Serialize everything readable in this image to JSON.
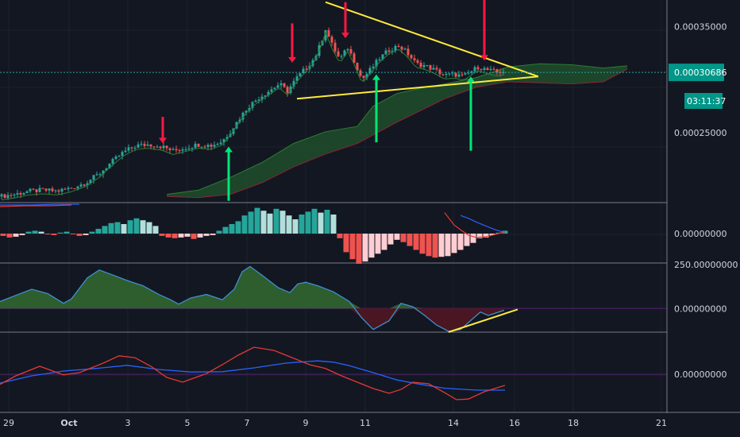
{
  "chart_data": [
    {
      "panel": "price",
      "type": "candlestick",
      "y_tick_labels": [
        "0.00035000",
        "0.00025000"
      ],
      "y_ticks": [
        0.00035,
        0.00025
      ],
      "ylim": [
        0.000185,
        0.000375
      ],
      "last_price": "0.00030686",
      "countdown": "03:11:37",
      "last_price_value": 0.00030686,
      "close_path": [
        [
          0,
          0.00019
        ],
        [
          18,
          0.000192
        ],
        [
          36,
          0.000195
        ],
        [
          54,
          0.000196
        ],
        [
          72,
          0.000195
        ],
        [
          90,
          0.000198
        ],
        [
          108,
          0.000203
        ],
        [
          126,
          0.000212
        ],
        [
          140,
          0.000222
        ],
        [
          156,
          0.000232
        ],
        [
          172,
          0.000238
        ],
        [
          188,
          0.000239
        ],
        [
          204,
          0.000237
        ],
        [
          218,
          0.000233
        ],
        [
          234,
          0.000236
        ],
        [
          250,
          0.000239
        ],
        [
          266,
          0.000238
        ],
        [
          280,
          0.000242
        ],
        [
          290,
          0.000251
        ],
        [
          300,
          0.000262
        ],
        [
          312,
          0.000274
        ],
        [
          326,
          0.000283
        ],
        [
          340,
          0.00029
        ],
        [
          352,
          0.000296
        ],
        [
          362,
          0.000289
        ],
        [
          372,
          0.0003
        ],
        [
          384,
          0.00031
        ],
        [
          396,
          0.00032
        ],
        [
          404,
          0.000334
        ],
        [
          410,
          0.000348
        ],
        [
          418,
          0.000333
        ],
        [
          428,
          0.000319
        ],
        [
          438,
          0.00033
        ],
        [
          446,
          0.000318
        ],
        [
          456,
          0.0003
        ],
        [
          466,
          0.000309
        ],
        [
          478,
          0.00032
        ],
        [
          490,
          0.000328
        ],
        [
          502,
          0.000332
        ],
        [
          512,
          0.000326
        ],
        [
          524,
          0.000315
        ],
        [
          536,
          0.000313
        ],
        [
          548,
          0.000309
        ],
        [
          560,
          0.000304
        ],
        [
          572,
          0.000305
        ],
        [
          584,
          0.000303
        ],
        [
          592,
          0.000307
        ],
        [
          602,
          0.000312
        ],
        [
          614,
          0.000309
        ],
        [
          626,
          0.000307
        ],
        [
          636,
          0.000308
        ]
      ],
      "triangle_upper": [
        [
          410,
          0.000373
        ],
        [
          678,
          0.000303
        ]
      ],
      "triangle_lower": [
        [
          374,
          0.000282
        ],
        [
          678,
          0.000303
        ]
      ],
      "arrows_down": [
        [
          205,
          0.000265,
          0.00024
        ],
        [
          368,
          0.000353,
          0.000316
        ],
        [
          435,
          0.000373,
          0.000339
        ],
        [
          610,
          0.000375,
          0.000318
        ]
      ],
      "arrows_up": [
        [
          288,
          0.000186,
          0.000237
        ],
        [
          474,
          0.000241,
          0.000305
        ],
        [
          593,
          0.000233,
          0.000303
        ]
      ],
      "cloud_top": [
        [
          210,
          0.000192
        ],
        [
          250,
          0.000196
        ],
        [
          290,
          0.000208
        ],
        [
          330,
          0.000222
        ],
        [
          370,
          0.00024
        ],
        [
          410,
          0.000251
        ],
        [
          450,
          0.000256
        ],
        [
          470,
          0.000275
        ],
        [
          500,
          0.000287
        ],
        [
          530,
          0.000292
        ],
        [
          560,
          0.000296
        ],
        [
          600,
          0.000302
        ],
        [
          640,
          0.000312
        ],
        [
          680,
          0.000315
        ],
        [
          720,
          0.000314
        ],
        [
          760,
          0.000311
        ],
        [
          790,
          0.000313
        ]
      ],
      "cloud_bottom": [
        [
          210,
          0.00019
        ],
        [
          250,
          0.000189
        ],
        [
          290,
          0.000192
        ],
        [
          330,
          0.000203
        ],
        [
          370,
          0.000218
        ],
        [
          410,
          0.00023
        ],
        [
          450,
          0.00024
        ],
        [
          470,
          0.000248
        ],
        [
          500,
          0.00026
        ],
        [
          530,
          0.000271
        ],
        [
          560,
          0.000282
        ],
        [
          600,
          0.000293
        ],
        [
          640,
          0.000298
        ],
        [
          680,
          0.000297
        ],
        [
          720,
          0.000296
        ],
        [
          760,
          0.000298
        ],
        [
          790,
          0.00031
        ]
      ]
    },
    {
      "panel": "macd",
      "type": "histogram",
      "y_tick_labels": [
        "0.00000000"
      ],
      "x": [
        0,
        8,
        16,
        24,
        32,
        40,
        48,
        56,
        64,
        72,
        80,
        88,
        96,
        104,
        112,
        120,
        128,
        136,
        144,
        152,
        160,
        168,
        176,
        184,
        192,
        200,
        208,
        216,
        224,
        232,
        240,
        248,
        256,
        264,
        272,
        280,
        288,
        296,
        304,
        312,
        320,
        328,
        336,
        344,
        352,
        360,
        368,
        376,
        384,
        392,
        400,
        408,
        416,
        424,
        432,
        440,
        448,
        456,
        464,
        472,
        480,
        488,
        496,
        504,
        512,
        520,
        528,
        536,
        544,
        552,
        560,
        568,
        576,
        584,
        592,
        600,
        608,
        616,
        624,
        632
      ],
      "values": [
        -0.3,
        -0.5,
        -0.4,
        -0.2,
        0.2,
        0.3,
        0.2,
        -0.1,
        -0.2,
        0.1,
        0.2,
        -0.1,
        -0.3,
        -0.2,
        0.2,
        0.5,
        0.8,
        1.1,
        1.2,
        1.0,
        1.4,
        1.6,
        1.4,
        1.2,
        0.8,
        -0.3,
        -0.5,
        -0.6,
        -0.5,
        -0.4,
        -0.7,
        -0.5,
        -0.3,
        -0.2,
        0.3,
        0.7,
        1.0,
        1.3,
        1.9,
        2.3,
        2.7,
        2.4,
        2.1,
        2.6,
        2.4,
        1.9,
        1.5,
        2.0,
        2.3,
        2.6,
        2.2,
        2.5,
        2.0,
        -0.6,
        -2.4,
        -3.3,
        -3.9,
        -3.6,
        -3.1,
        -2.6,
        -2.1,
        -1.4,
        -0.8,
        -1.1,
        -1.6,
        -2.1,
        -2.6,
        -2.9,
        -3.1,
        -3.0,
        -2.9,
        -2.5,
        -2.1,
        -1.6,
        -1.2,
        -0.6,
        -0.5,
        -0.2,
        0.1,
        0.3
      ],
      "signal": [
        [
          560,
          2.2
        ],
        [
          572,
          0.9
        ],
        [
          580,
          0.4
        ],
        [
          590,
          -0.2
        ],
        [
          600,
          -0.5
        ],
        [
          612,
          -0.4
        ],
        [
          624,
          -0.1
        ],
        [
          636,
          0.2
        ]
      ],
      "macd_line": [
        [
          580,
          1.9
        ],
        [
          590,
          1.6
        ],
        [
          600,
          1.2
        ],
        [
          612,
          0.8
        ],
        [
          624,
          0.4
        ],
        [
          636,
          0.1
        ]
      ],
      "ylim": [
        -3.9,
        3.0
      ]
    },
    {
      "panel": "oscillator-area",
      "type": "area",
      "y_tick_labels": [
        "250.00000000",
        "0.00000000"
      ],
      "y_ticks": [
        250,
        0
      ],
      "ylim": [
        -135,
        260
      ],
      "x": [
        0,
        20,
        40,
        60,
        80,
        90,
        110,
        125,
        140,
        160,
        180,
        200,
        215,
        225,
        240,
        260,
        280,
        295,
        305,
        315,
        330,
        350,
        365,
        375,
        385,
        400,
        420,
        440,
        455,
        470,
        490,
        505,
        520,
        535,
        550,
        565,
        580,
        595,
        605,
        615,
        625,
        635
      ],
      "values": [
        40,
        75,
        110,
        85,
        30,
        55,
        175,
        220,
        195,
        160,
        130,
        80,
        50,
        25,
        60,
        80,
        50,
        110,
        210,
        240,
        190,
        120,
        90,
        140,
        150,
        130,
        95,
        40,
        -50,
        -120,
        -70,
        30,
        10,
        -40,
        -95,
        -130,
        -120,
        -60,
        -20,
        -40,
        -25,
        -10
      ],
      "trendline": [
        [
          565,
          -135
        ],
        [
          652,
          -5
        ]
      ]
    },
    {
      "panel": "oscillator-lines",
      "type": "line",
      "y_tick_labels": [
        "0.00000000"
      ],
      "ylim": [
        -1,
        1
      ],
      "series": [
        {
          "color": "#2962ff",
          "points": [
            [
              0,
              -0.28
            ],
            [
              40,
              -0.05
            ],
            [
              80,
              0.1
            ],
            [
              120,
              0.18
            ],
            [
              160,
              0.28
            ],
            [
              200,
              0.15
            ],
            [
              240,
              0.07
            ],
            [
              280,
              0.08
            ],
            [
              320,
              0.2
            ],
            [
              360,
              0.35
            ],
            [
              400,
              0.42
            ],
            [
              420,
              0.38
            ],
            [
              440,
              0.27
            ],
            [
              470,
              0.05
            ],
            [
              500,
              -0.18
            ],
            [
              530,
              -0.32
            ],
            [
              560,
              -0.44
            ],
            [
              600,
              -0.5
            ],
            [
              636,
              -0.5
            ]
          ]
        },
        {
          "color": "#e53935",
          "points": [
            [
              0,
              -0.32
            ],
            [
              20,
              -0.05
            ],
            [
              50,
              0.25
            ],
            [
              80,
              -0.02
            ],
            [
              100,
              0.05
            ],
            [
              130,
              0.35
            ],
            [
              150,
              0.58
            ],
            [
              170,
              0.52
            ],
            [
              190,
              0.25
            ],
            [
              210,
              -0.1
            ],
            [
              230,
              -0.25
            ],
            [
              260,
              0.02
            ],
            [
              280,
              0.3
            ],
            [
              300,
              0.6
            ],
            [
              320,
              0.85
            ],
            [
              345,
              0.75
            ],
            [
              365,
              0.55
            ],
            [
              390,
              0.3
            ],
            [
              410,
              0.18
            ],
            [
              430,
              -0.05
            ],
            [
              450,
              -0.25
            ],
            [
              470,
              -0.45
            ],
            [
              490,
              -0.6
            ],
            [
              505,
              -0.48
            ],
            [
              520,
              -0.25
            ],
            [
              540,
              -0.3
            ],
            [
              560,
              -0.58
            ],
            [
              575,
              -0.8
            ],
            [
              590,
              -0.78
            ],
            [
              610,
              -0.55
            ],
            [
              636,
              -0.35
            ]
          ]
        }
      ]
    }
  ],
  "x_axis": {
    "labels": [
      {
        "text": "29",
        "x": 11
      },
      {
        "text": "Oct",
        "x": 87
      },
      {
        "text": "3",
        "x": 161
      },
      {
        "text": "5",
        "x": 236
      },
      {
        "text": "7",
        "x": 311
      },
      {
        "text": "9",
        "x": 385
      },
      {
        "text": "11",
        "x": 460
      },
      {
        "text": "14",
        "x": 571
      },
      {
        "text": "16",
        "x": 648
      },
      {
        "text": "18",
        "x": 722
      },
      {
        "text": "21",
        "x": 833
      }
    ]
  },
  "colors": {
    "background": "#131722",
    "up": "#26a69a",
    "down": "#ef5350",
    "up_light": "#b2dfdb",
    "down_light": "#ffcdd2",
    "triangle": "#ffeb3b",
    "arrow_up": "#00e676",
    "arrow_down": "#ff1744",
    "cloud_fill": "#1e4d2b",
    "area_pos": "#2e5e2e",
    "area_neg": "#4a1621",
    "badge": "#009688"
  }
}
